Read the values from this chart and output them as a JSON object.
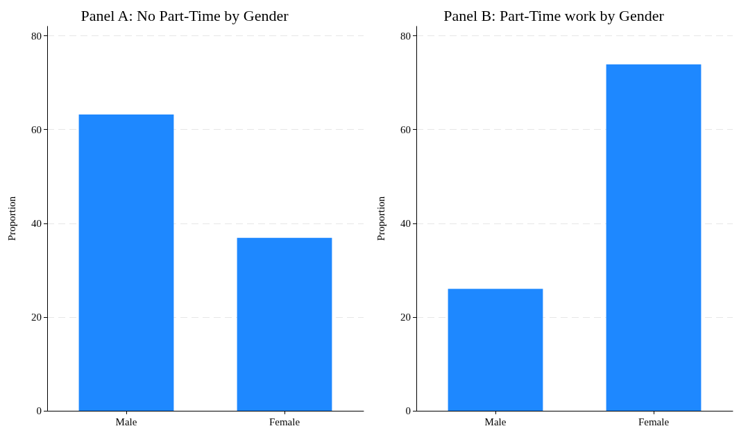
{
  "chart_data": [
    {
      "type": "bar",
      "title": "Panel A: No Part-Time by Gender",
      "ylabel": "Proportion",
      "categories": [
        "Male",
        "Female"
      ],
      "values": [
        63.2,
        36.9
      ],
      "color": "#1e88ff",
      "ylim": [
        0,
        82
      ],
      "yticks": [
        0,
        20,
        40,
        60,
        80
      ],
      "grid": "y"
    },
    {
      "type": "bar",
      "title": "Panel B: Part-Time work by Gender",
      "ylabel": "Proportion",
      "categories": [
        "Male",
        "Female"
      ],
      "values": [
        26.0,
        73.9
      ],
      "color": "#1e88ff",
      "ylim": [
        0,
        82
      ],
      "yticks": [
        0,
        20,
        40,
        60,
        80
      ],
      "grid": "y"
    }
  ]
}
